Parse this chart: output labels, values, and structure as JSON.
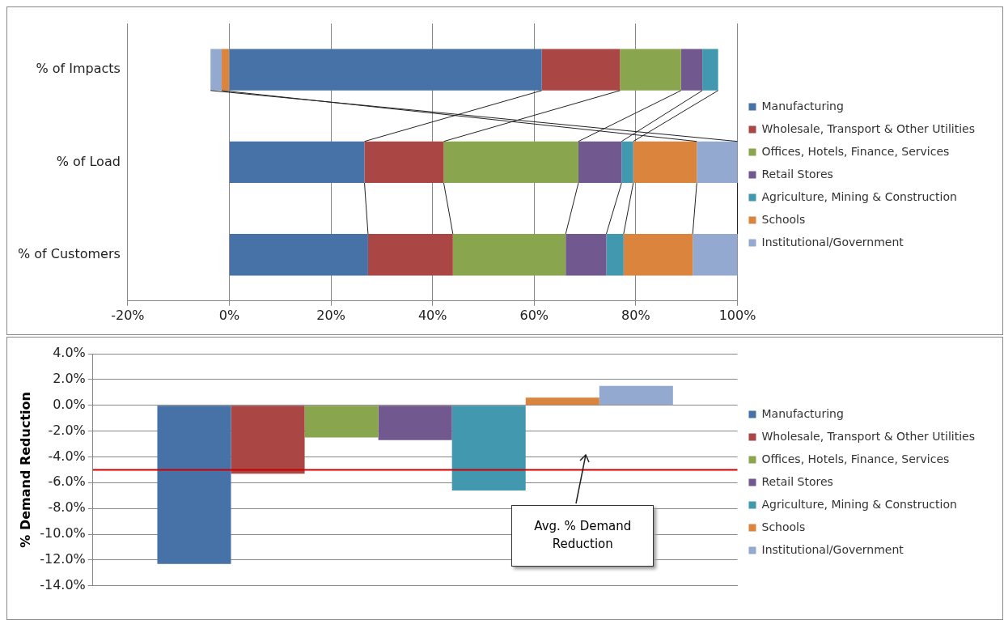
{
  "chart_data": [
    {
      "type": "bar",
      "orientation": "horizontal",
      "stacked": true,
      "categories": [
        "% of Impacts",
        "% of Load",
        "% of Customers"
      ],
      "series": [
        {
          "name": "Manufacturing",
          "color": "#4672a8",
          "values": [
            61.5,
            26.6,
            27.3
          ]
        },
        {
          "name": "Wholesale, Transport & Other Utilities",
          "color": "#aa4644",
          "values": [
            15.4,
            15.6,
            16.7
          ]
        },
        {
          "name": "Offices, Hotels, Finance, Services",
          "color": "#89a54e",
          "values": [
            12.0,
            26.5,
            22.2
          ]
        },
        {
          "name": "Retail Stores",
          "color": "#71588f",
          "values": [
            4.2,
            8.5,
            8.0
          ]
        },
        {
          "name": "Agriculture, Mining & Construction",
          "color": "#4198af",
          "values": [
            3.1,
            2.3,
            3.4
          ]
        },
        {
          "name": "Schools",
          "color": "#db843d",
          "values": [
            -1.5,
            12.5,
            13.6
          ]
        },
        {
          "name": "Institutional/Government",
          "color": "#93a9cf",
          "values": [
            -2.2,
            8.0,
            8.8
          ]
        }
      ],
      "xlim": [
        -20,
        100
      ],
      "xticks": [
        {
          "value": -20,
          "label": "-20%"
        },
        {
          "value": 0,
          "label": "0%"
        },
        {
          "value": 20,
          "label": "20%"
        },
        {
          "value": 40,
          "label": "40%"
        },
        {
          "value": 60,
          "label": "60%"
        },
        {
          "value": 80,
          "label": "80%"
        },
        {
          "value": 100,
          "label": "100%"
        }
      ],
      "grid": "x",
      "legend": "right"
    },
    {
      "type": "bar",
      "categories": [
        null
      ],
      "ylabel": "% Demand Reduction",
      "series": [
        {
          "name": "Manufacturing",
          "color": "#4672a8",
          "values": [
            -12.3
          ]
        },
        {
          "name": "Wholesale, Transport & Other Utilities",
          "color": "#aa4644",
          "values": [
            -5.3
          ]
        },
        {
          "name": "Offices, Hotels, Finance, Services",
          "color": "#89a54e",
          "values": [
            -2.5
          ]
        },
        {
          "name": "Retail Stores",
          "color": "#71588f",
          "values": [
            -2.7
          ]
        },
        {
          "name": "Agriculture, Mining & Construction",
          "color": "#4198af",
          "values": [
            -6.6
          ]
        },
        {
          "name": "Schools",
          "color": "#db843d",
          "values": [
            0.6
          ]
        },
        {
          "name": "Institutional/Government",
          "color": "#93a9cf",
          "values": [
            1.5
          ]
        }
      ],
      "ylim": [
        -14,
        4
      ],
      "yticks": [
        {
          "value": -14,
          "label": "-14.0%"
        },
        {
          "value": -12,
          "label": "-12.0%"
        },
        {
          "value": -10,
          "label": "-10.0%"
        },
        {
          "value": -8,
          "label": "-8.0%"
        },
        {
          "value": -6,
          "label": "-6.0%"
        },
        {
          "value": -4,
          "label": "-4.0%"
        },
        {
          "value": -2,
          "label": "-2.0%"
        },
        {
          "value": 0,
          "label": "0.0%"
        },
        {
          "value": 2,
          "label": "2.0%"
        },
        {
          "value": 4,
          "label": "4.0%"
        }
      ],
      "ref_lines": [
        {
          "axis": "y",
          "value": -5.0,
          "color": "#cc0000"
        }
      ],
      "annotations": [
        "Avg. % Demand Reduction"
      ],
      "grid": "y",
      "legend": "right"
    }
  ]
}
